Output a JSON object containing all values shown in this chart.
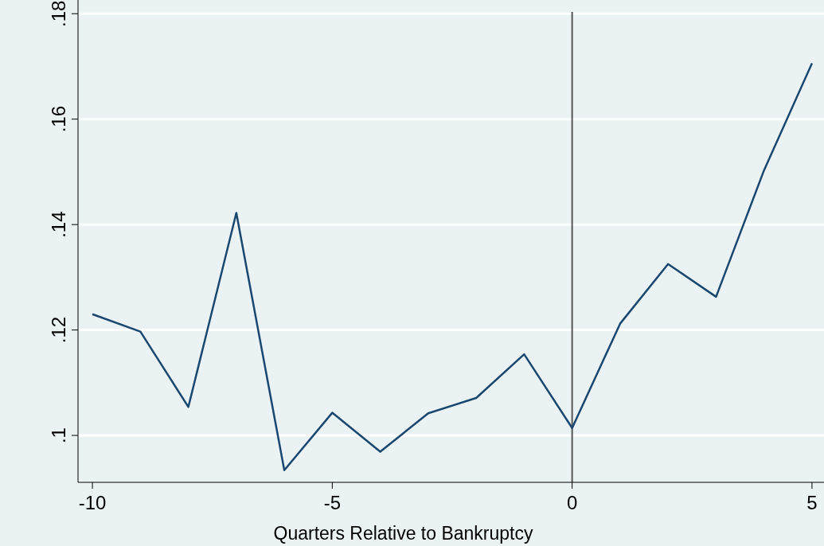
{
  "chart_data": {
    "type": "line",
    "xlabel": "Quarters Relative to Bankruptcy",
    "x": [
      -10,
      -9,
      -8,
      -7,
      -6,
      -5,
      -4,
      -3,
      -2,
      -1,
      0,
      1,
      2,
      3,
      4,
      5
    ],
    "series": [
      {
        "color": "#1a476f",
        "values": [
          0.123,
          0.1197,
          0.1054,
          0.1422,
          0.0934,
          0.1043,
          0.0969,
          0.1042,
          0.1071,
          0.1154,
          0.1014,
          0.1212,
          0.1325,
          0.1263,
          0.1503,
          0.1706
        ]
      }
    ],
    "xlim": [
      -10.3,
      5.25
    ],
    "xticks": [
      -10,
      -5,
      0,
      5
    ],
    "ylim": [
      0.0911,
      0.1826
    ],
    "yticks": [
      {
        "value": 0.1,
        "label": ".1"
      },
      {
        "value": 0.12,
        "label": ".12"
      },
      {
        "value": 0.14,
        "label": ".14"
      },
      {
        "value": 0.16,
        "label": ".16"
      },
      {
        "value": 0.18,
        "label": ".18"
      }
    ],
    "grid": "y",
    "marker": "none",
    "line_style": "solid",
    "ref_lines": [
      {
        "axis": "x",
        "value": 0,
        "color": "#555555"
      }
    ]
  }
}
